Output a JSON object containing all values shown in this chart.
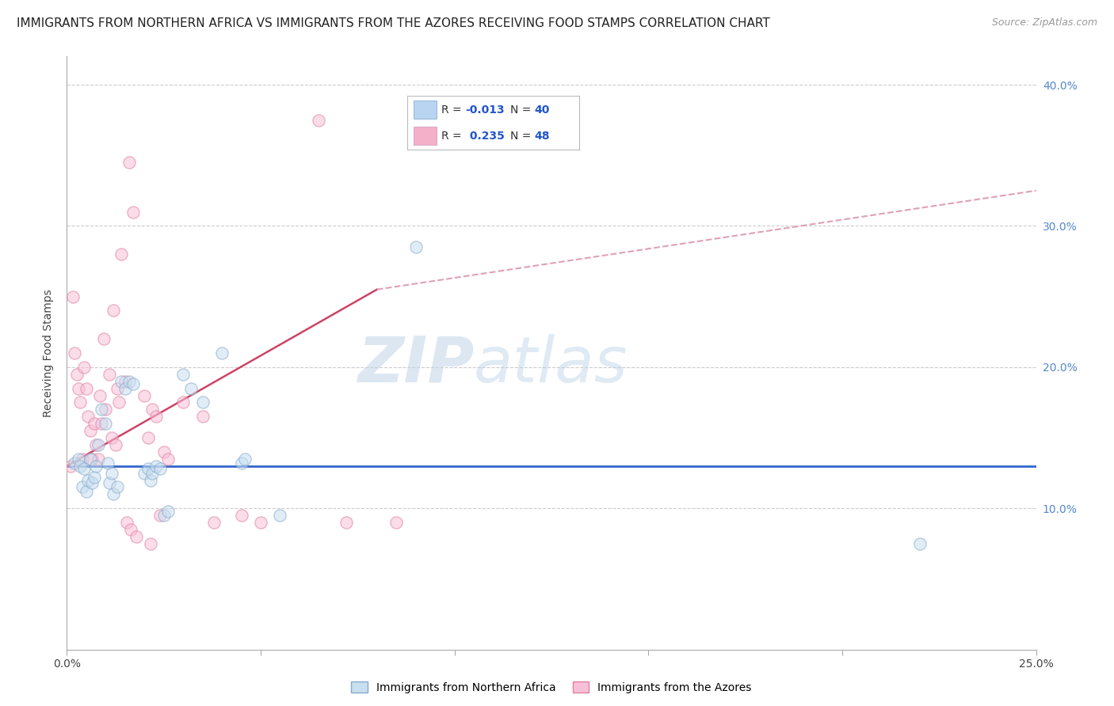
{
  "title": "IMMIGRANTS FROM NORTHERN AFRICA VS IMMIGRANTS FROM THE AZORES RECEIVING FOOD STAMPS CORRELATION CHART",
  "source": "Source: ZipAtlas.com",
  "ylabel_left": "Receiving Food Stamps",
  "xlim": [
    0.0,
    25.0
  ],
  "ylim": [
    0.0,
    42.0
  ],
  "yticks_right": [
    10.0,
    20.0,
    30.0,
    40.0
  ],
  "background_color": "#ffffff",
  "grid_color": "#cccccc",
  "watermark_text_zip": "ZIP",
  "watermark_text_atlas": "atlas",
  "blue_dots": [
    [
      0.2,
      13.2
    ],
    [
      0.3,
      13.5
    ],
    [
      0.35,
      13.0
    ],
    [
      0.4,
      11.5
    ],
    [
      0.45,
      12.8
    ],
    [
      0.5,
      11.2
    ],
    [
      0.55,
      12.0
    ],
    [
      0.6,
      13.5
    ],
    [
      0.65,
      11.8
    ],
    [
      0.7,
      12.2
    ],
    [
      0.75,
      13.0
    ],
    [
      0.8,
      14.5
    ],
    [
      0.9,
      17.0
    ],
    [
      1.0,
      16.0
    ],
    [
      1.05,
      13.2
    ],
    [
      1.1,
      11.8
    ],
    [
      1.15,
      12.5
    ],
    [
      1.2,
      11.0
    ],
    [
      1.3,
      11.5
    ],
    [
      1.4,
      19.0
    ],
    [
      1.5,
      18.5
    ],
    [
      1.6,
      19.0
    ],
    [
      1.7,
      18.8
    ],
    [
      2.0,
      12.5
    ],
    [
      2.1,
      12.8
    ],
    [
      2.15,
      12.0
    ],
    [
      2.2,
      12.5
    ],
    [
      2.3,
      13.0
    ],
    [
      2.4,
      12.8
    ],
    [
      2.5,
      9.5
    ],
    [
      2.6,
      9.8
    ],
    [
      3.0,
      19.5
    ],
    [
      3.2,
      18.5
    ],
    [
      3.5,
      17.5
    ],
    [
      4.0,
      21.0
    ],
    [
      4.5,
      13.2
    ],
    [
      4.6,
      13.5
    ],
    [
      5.5,
      9.5
    ],
    [
      9.0,
      28.5
    ],
    [
      22.0,
      7.5
    ]
  ],
  "pink_dots": [
    [
      0.1,
      13.0
    ],
    [
      0.15,
      25.0
    ],
    [
      0.2,
      21.0
    ],
    [
      0.25,
      19.5
    ],
    [
      0.3,
      18.5
    ],
    [
      0.35,
      17.5
    ],
    [
      0.4,
      13.5
    ],
    [
      0.45,
      20.0
    ],
    [
      0.5,
      18.5
    ],
    [
      0.55,
      16.5
    ],
    [
      0.6,
      15.5
    ],
    [
      0.65,
      13.5
    ],
    [
      0.7,
      16.0
    ],
    [
      0.75,
      14.5
    ],
    [
      0.8,
      13.5
    ],
    [
      0.85,
      18.0
    ],
    [
      0.9,
      16.0
    ],
    [
      0.95,
      22.0
    ],
    [
      1.0,
      17.0
    ],
    [
      1.1,
      19.5
    ],
    [
      1.15,
      15.0
    ],
    [
      1.2,
      24.0
    ],
    [
      1.25,
      14.5
    ],
    [
      1.3,
      18.5
    ],
    [
      1.35,
      17.5
    ],
    [
      1.4,
      28.0
    ],
    [
      1.5,
      19.0
    ],
    [
      1.55,
      9.0
    ],
    [
      1.6,
      34.5
    ],
    [
      1.65,
      8.5
    ],
    [
      1.7,
      31.0
    ],
    [
      1.8,
      8.0
    ],
    [
      2.0,
      18.0
    ],
    [
      2.1,
      15.0
    ],
    [
      2.15,
      7.5
    ],
    [
      2.2,
      17.0
    ],
    [
      2.3,
      16.5
    ],
    [
      2.4,
      9.5
    ],
    [
      2.5,
      14.0
    ],
    [
      2.6,
      13.5
    ],
    [
      3.0,
      17.5
    ],
    [
      3.5,
      16.5
    ],
    [
      3.8,
      9.0
    ],
    [
      4.5,
      9.5
    ],
    [
      5.0,
      9.0
    ],
    [
      6.5,
      37.5
    ],
    [
      7.2,
      9.0
    ],
    [
      8.5,
      9.0
    ]
  ],
  "blue_line_y": 13.0,
  "pink_solid_x0": 0.0,
  "pink_solid_x1": 8.0,
  "pink_solid_y0": 13.0,
  "pink_solid_y1": 25.5,
  "pink_dash_x0": 8.0,
  "pink_dash_x1": 25.0,
  "pink_dash_y0": 25.5,
  "pink_dash_y1": 32.5,
  "title_fontsize": 11,
  "source_fontsize": 9,
  "axis_label_fontsize": 10,
  "tick_fontsize": 10,
  "dot_size": 120,
  "dot_alpha": 0.55,
  "blue_color": "#a8c8e8",
  "pink_color": "#f0a0c0",
  "blue_fill": "#c8dff0",
  "pink_fill": "#f8c0d8",
  "blue_edge": "#88aacc",
  "pink_edge": "#e080a0",
  "blue_line_color": "#3366cc",
  "pink_line_color": "#cc4466",
  "pink_dash_color": "#e0a0b8",
  "legend_blue_box": "#b8d4f0",
  "legend_pink_box": "#f4b0c8",
  "legend_r_color": "#333333",
  "legend_val_color": "#2255cc"
}
